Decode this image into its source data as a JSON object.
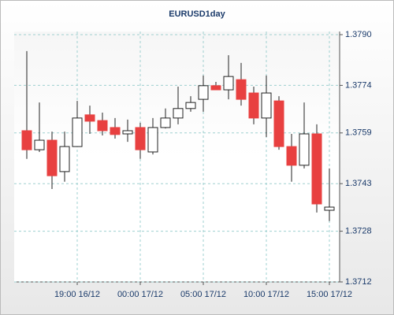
{
  "chart_data": {
    "type": "candlestick",
    "title": "EURUSD1day",
    "categories": [
      null,
      null,
      null,
      null,
      "19:00 16/12",
      null,
      null,
      null,
      null,
      "00:00 17/12",
      null,
      null,
      null,
      null,
      "05:00 17/12",
      null,
      null,
      null,
      null,
      "10:00 17/12",
      null,
      null,
      null,
      null,
      "15:00 17/12"
    ],
    "open": [
      1.37597,
      1.37537,
      1.37567,
      1.37468,
      1.37547,
      1.37647,
      1.37629,
      1.37607,
      1.37587,
      1.37607,
      1.3753,
      1.37607,
      1.37637,
      1.37667,
      1.37696,
      1.37739,
      1.37726,
      1.37758,
      1.37716,
      1.37637,
      1.37691,
      1.37547,
      1.37488,
      1.37587,
      1.37346
    ],
    "high": [
      1.37848,
      1.37686,
      1.37594,
      1.37594,
      1.37691,
      1.37676,
      1.37654,
      1.37637,
      1.37632,
      1.37622,
      1.37637,
      1.37667,
      1.37736,
      1.37706,
      1.37771,
      1.37751,
      1.37835,
      1.37811,
      1.37736,
      1.37771,
      1.37706,
      1.37587,
      1.37686,
      1.37617,
      1.37478
    ],
    "low": [
      1.37508,
      1.3753,
      1.37413,
      1.37436,
      1.37547,
      1.37587,
      1.37582,
      1.37572,
      1.37562,
      1.37508,
      1.37522,
      1.37604,
      1.37617,
      1.37657,
      1.37657,
      1.37726,
      1.37696,
      1.37676,
      1.37617,
      1.37577,
      1.37537,
      1.37436,
      1.37478,
      1.37339,
      1.37312
    ],
    "close": [
      1.37537,
      1.37567,
      1.37455,
      1.37547,
      1.37637,
      1.37627,
      1.37597,
      1.37585,
      1.37597,
      1.37537,
      1.37607,
      1.37637,
      1.37667,
      1.37686,
      1.37739,
      1.37726,
      1.37768,
      1.37696,
      1.37637,
      1.37716,
      1.37547,
      1.37488,
      1.37587,
      1.37366,
      1.37356
    ],
    "up_color": "#ffffff",
    "down_color": "#e84040",
    "ylim": [
      1.3712,
      1.379
    ],
    "yticks": [
      {
        "value": 1.379,
        "label": "1.3790"
      },
      1.3774,
      1.3759,
      1.3743,
      1.3728,
      1.3712
    ],
    "grid": true
  }
}
